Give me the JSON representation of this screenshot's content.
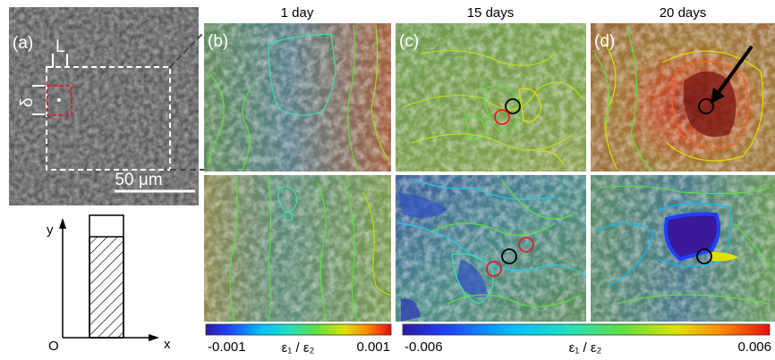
{
  "panel_a": {
    "label": "(a)",
    "length_label": "L",
    "width_label": "δ",
    "scale_bar": "50 μm"
  },
  "columns": [
    {
      "title": "1 day",
      "label": "(b)"
    },
    {
      "title": "15 days",
      "label": "(c)"
    },
    {
      "title": "20 days",
      "label": "(d)"
    }
  ],
  "colorbars": [
    {
      "min": "-0.001",
      "max": "0.001",
      "label": "ε₁ / ε₂"
    },
    {
      "min": "-0.006",
      "max": "0.006",
      "label": "ε₁ / ε₂"
    }
  ],
  "axes_diagram": {
    "y": "y",
    "x": "x",
    "origin": "O"
  }
}
